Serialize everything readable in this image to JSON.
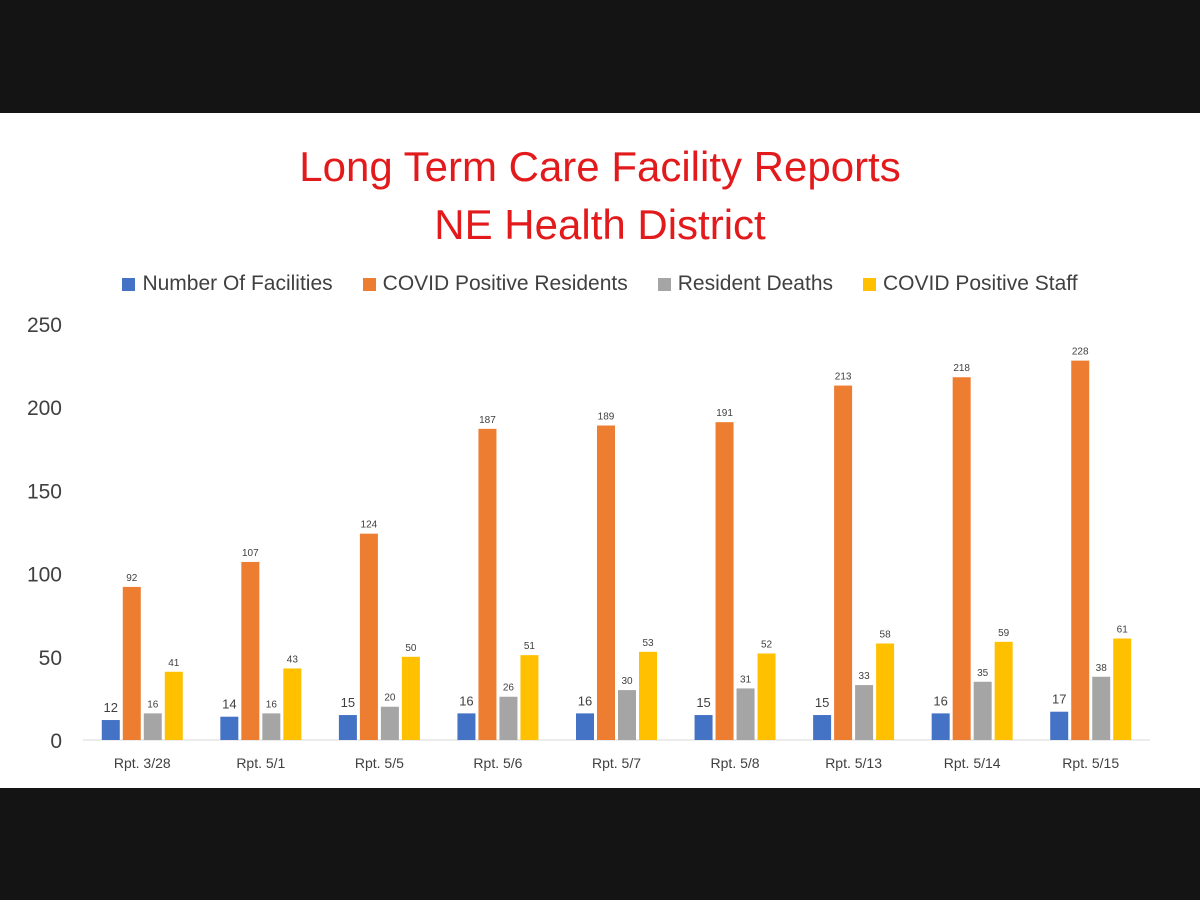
{
  "chart_data": {
    "type": "bar",
    "title": "Long Term Care Facility Reports",
    "subtitle": "NE Health District",
    "legend_position": "top",
    "grid": false,
    "ylim": [
      0,
      250
    ],
    "yticks": [
      "0",
      "50",
      "100",
      "150",
      "200",
      "250"
    ],
    "categories": [
      "Rpt. 3/28",
      "Rpt. 5/1",
      "Rpt. 5/5",
      "Rpt. 5/6",
      "Rpt. 5/7",
      "Rpt. 5/8",
      "Rpt. 5/13",
      "Rpt. 5/14",
      "Rpt. 5/15"
    ],
    "series": [
      {
        "name": "Number Of Facilities",
        "color": "#4472c4",
        "values": [
          12,
          14,
          15,
          16,
          16,
          15,
          15,
          16,
          17
        ]
      },
      {
        "name": "COVID Positive Residents",
        "color": "#ed7d31",
        "values": [
          92,
          107,
          124,
          187,
          189,
          191,
          213,
          218,
          228
        ]
      },
      {
        "name": "Resident Deaths",
        "color": "#a5a5a5",
        "values": [
          16,
          16,
          20,
          26,
          30,
          31,
          33,
          35,
          38
        ]
      },
      {
        "name": "COVID Positive Staff",
        "color": "#ffc000",
        "values": [
          41,
          43,
          50,
          51,
          53,
          52,
          58,
          59,
          61
        ]
      }
    ]
  }
}
